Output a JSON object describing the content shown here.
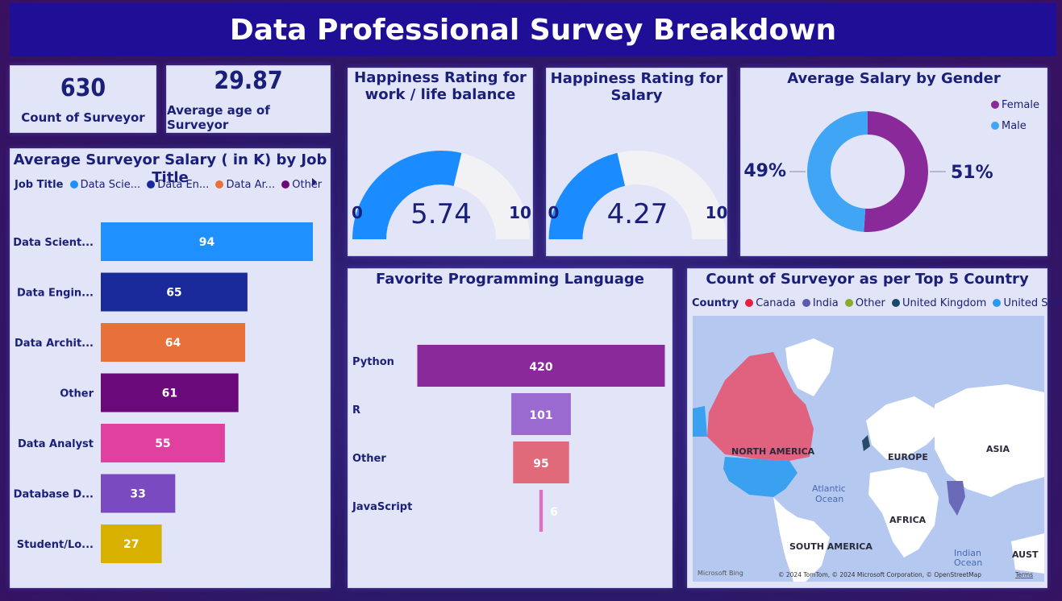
{
  "title": "Data Professional Survey Breakdown",
  "kpis": {
    "count": {
      "value": "630",
      "label": "Count of Surveyor"
    },
    "age": {
      "value": "29.87",
      "label": "Average age of Surveyor"
    }
  },
  "salary_chart": {
    "title": "Average Surveyor Salary ( in K) by Job Title",
    "legend_title": "Job Title",
    "legend_items": [
      {
        "label": "Data Scie...",
        "color": "#1e90ff"
      },
      {
        "label": "Data En...",
        "color": "#1a2a9a"
      },
      {
        "label": "Data Ar...",
        "color": "#e8703a"
      },
      {
        "label": "Other",
        "color": "#6a0a7a"
      }
    ]
  },
  "gauge_wlb": {
    "title_line1": "Happiness Rating for",
    "title_line2": "work / life balance",
    "value_text": "5.74",
    "min": "0",
    "max": "10"
  },
  "gauge_salary": {
    "title_line1": "Happiness Rating for",
    "title_line2": "Salary",
    "value_text": "4.27",
    "min": "0",
    "max": "10"
  },
  "gender_chart": {
    "title": "Average Salary by Gender",
    "legend": [
      {
        "label": "Female",
        "color": "#8a2a9a"
      },
      {
        "label": "Male",
        "color": "#41a5f5"
      }
    ],
    "female_pct": "51%",
    "male_pct": "49%"
  },
  "lang_chart": {
    "title": "Favorite Programming Language"
  },
  "map_card": {
    "title": "Count of Surveyor as per Top 5 Country",
    "legend_title": "Country",
    "legend": [
      {
        "label": "Canada",
        "color": "#e8203a"
      },
      {
        "label": "India",
        "color": "#5a5ab0"
      },
      {
        "label": "Other",
        "color": "#8aaa2a"
      },
      {
        "label": "United Kingdom",
        "color": "#1a4a6a"
      },
      {
        "label": "United States",
        "color": "#2a9af0"
      }
    ],
    "labels": {
      "north_america": "NORTH AMERICA",
      "europe": "EUROPE",
      "asia": "ASIA",
      "africa": "AFRICA",
      "south_america": "SOUTH AMERICA",
      "atlantic_line1": "Atlantic",
      "atlantic_line2": "Ocean",
      "indian_line1": "Indian",
      "indian_line2": "Ocean",
      "aust": "AUST"
    },
    "bing": "Microsoft Bing",
    "copyright": "© 2024 TomTom, © 2024 Microsoft Corporation, © OpenStreetMap",
    "terms": "Terms"
  },
  "chart_data": [
    {
      "type": "bar",
      "title": "Average Surveyor Salary ( in K) by Job Title",
      "orientation": "horizontal",
      "categories": [
        "Data Scient...",
        "Data Engin...",
        "Data Archit...",
        "Other",
        "Data Analyst",
        "Database D...",
        "Student/Lo..."
      ],
      "values": [
        94,
        65,
        64,
        61,
        55,
        33,
        27
      ],
      "colors": [
        "#1e90ff",
        "#1a2a9a",
        "#e8703a",
        "#6a0a7a",
        "#e040a0",
        "#7a4ac0",
        "#d8b000"
      ],
      "xlim": [
        0,
        94
      ]
    },
    {
      "type": "gauge",
      "title": "Happiness Rating for work / life balance",
      "value": 5.74,
      "min": 0,
      "max": 10
    },
    {
      "type": "gauge",
      "title": "Happiness Rating for Salary",
      "value": 4.27,
      "min": 0,
      "max": 10
    },
    {
      "type": "pie",
      "title": "Average Salary by Gender",
      "categories": [
        "Female",
        "Male"
      ],
      "values": [
        51,
        49
      ],
      "colors": [
        "#8a2a9a",
        "#41a5f5"
      ]
    },
    {
      "type": "bar",
      "title": "Favorite Programming Language",
      "orientation": "funnel",
      "categories": [
        "Python",
        "R",
        "Other",
        "JavaScript"
      ],
      "values": [
        420,
        101,
        95,
        6
      ],
      "colors": [
        "#8a2a9a",
        "#9a6ad0",
        "#e06a7a",
        "#e070c0"
      ]
    }
  ]
}
